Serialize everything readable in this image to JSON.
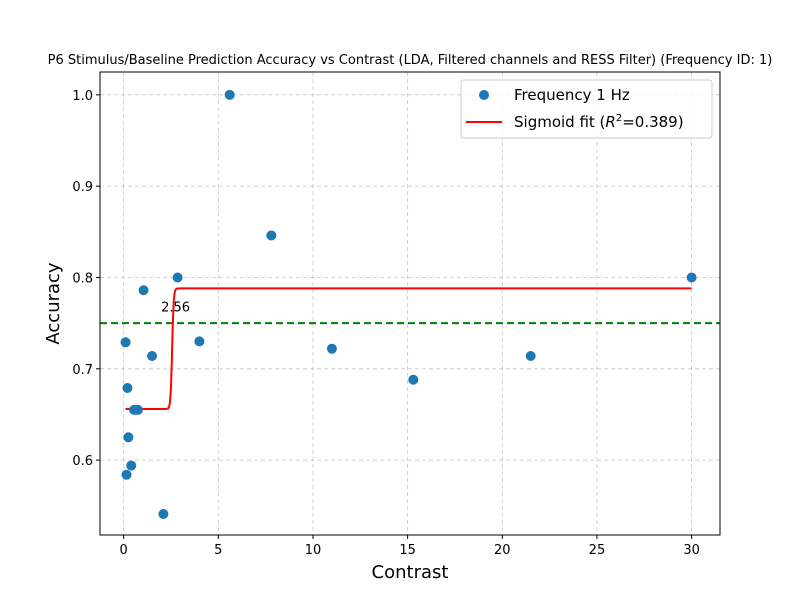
{
  "chart_data": {
    "type": "scatter",
    "title": "P6 Stimulus/Baseline Prediction Accuracy vs Contrast (LDA, Filtered channels and RESS Filter) (Frequency ID: 1)",
    "xlabel": "Contrast",
    "ylabel": "Accuracy",
    "xlim": [
      -1.25,
      31.5
    ],
    "ylim": [
      0.518,
      1.025
    ],
    "xticks": [
      0,
      5,
      10,
      15,
      20,
      25,
      30
    ],
    "yticks": [
      0.6,
      0.7,
      0.8,
      0.9,
      1.0
    ],
    "xtick_labels": [
      "0",
      "5",
      "10",
      "15",
      "20",
      "25",
      "30"
    ],
    "ytick_labels": [
      "0.6",
      "0.7",
      "0.8",
      "0.9",
      "1.0"
    ],
    "grid": true,
    "legend_position": "top-right",
    "series": [
      {
        "name": "Frequency 1 Hz",
        "kind": "scatter",
        "color": "#1f77b4",
        "points": [
          {
            "x": 0.1,
            "y": 0.729
          },
          {
            "x": 0.15,
            "y": 0.584
          },
          {
            "x": 0.2,
            "y": 0.679
          },
          {
            "x": 0.25,
            "y": 0.625
          },
          {
            "x": 0.4,
            "y": 0.594
          },
          {
            "x": 0.55,
            "y": 0.655
          },
          {
            "x": 0.75,
            "y": 0.655
          },
          {
            "x": 1.05,
            "y": 0.786
          },
          {
            "x": 1.5,
            "y": 0.714
          },
          {
            "x": 2.1,
            "y": 0.541
          },
          {
            "x": 2.85,
            "y": 0.8
          },
          {
            "x": 4.0,
            "y": 0.73
          },
          {
            "x": 5.6,
            "y": 1.0
          },
          {
            "x": 7.8,
            "y": 0.846
          },
          {
            "x": 11.0,
            "y": 0.722
          },
          {
            "x": 15.3,
            "y": 0.688
          },
          {
            "x": 21.5,
            "y": 0.714
          },
          {
            "x": 30.0,
            "y": 0.8
          }
        ]
      },
      {
        "name": "Sigmoid fit ($R^2$=0.389)",
        "legend_label_main": "Sigmoid fit (",
        "legend_label_r": "R",
        "legend_label_sup": "2",
        "legend_label_tail": "=0.389)",
        "kind": "sigmoid",
        "color": "#ff0000",
        "x_range": [
          0.1,
          30.0
        ],
        "lower": 0.656,
        "upper": 0.788,
        "midpoint": 2.56,
        "slope": 25
      }
    ],
    "threshold": {
      "y": 0.75,
      "color": "#008000",
      "style": "dashed"
    },
    "annotations": [
      {
        "text": "2.56",
        "x": 2.56,
        "y": 0.755
      }
    ]
  }
}
